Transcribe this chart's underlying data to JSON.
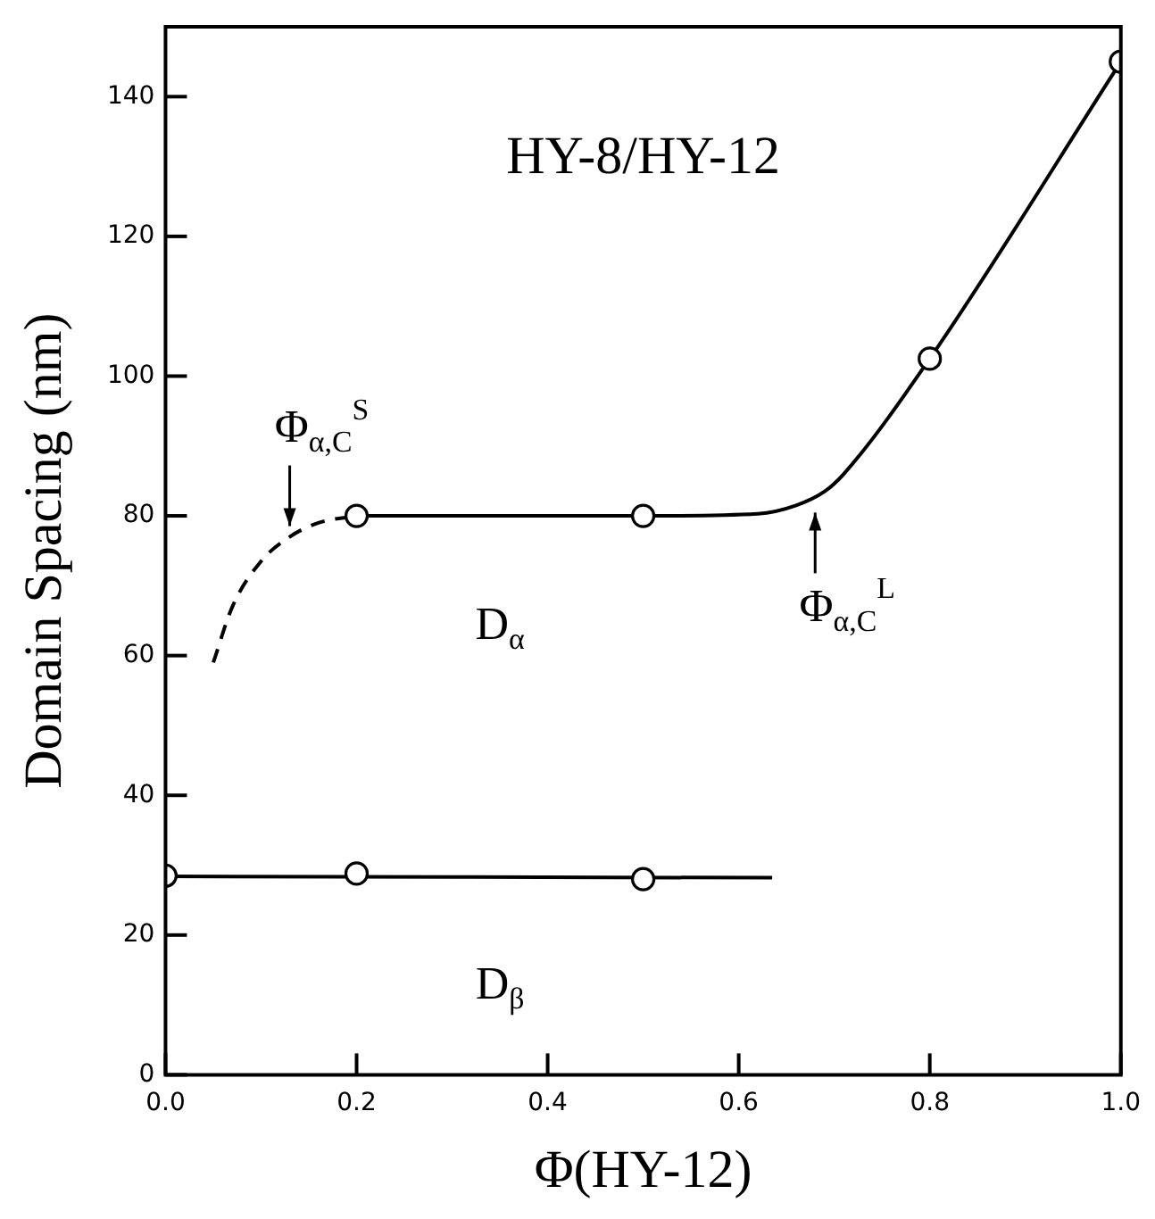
{
  "chart_data": {
    "type": "line",
    "title": "HY-8/HY-12",
    "xlabel": "Φ(HY-12)",
    "ylabel": "Domain Spacing (nm)",
    "xlim": [
      0,
      1
    ],
    "xticks": [
      {
        "value": 0,
        "label": "0.0"
      },
      {
        "value": 0.2,
        "label": "0.2"
      },
      {
        "value": 0.4,
        "label": "0.4"
      },
      {
        "value": 0.6,
        "label": "0.6"
      },
      {
        "value": 0.8,
        "label": "0.8"
      },
      {
        "value": 1,
        "label": "1.0"
      }
    ],
    "ylim": [
      0,
      150
    ],
    "yticks": [
      0,
      20,
      40,
      60,
      80,
      100,
      120,
      140
    ],
    "grid": false,
    "legend": false,
    "series": [
      {
        "type": "scatter",
        "name": "D$_{α}$",
        "marker": "circle",
        "color": "#000000",
        "x": [
          0.2,
          0.5,
          0.8,
          1.0
        ],
        "values": [
          80,
          80,
          102.5,
          145
        ]
      },
      {
        "type": "scatter",
        "name": "D$_{β}$",
        "marker": "circle",
        "color": "#000000",
        "x": [
          0.0,
          0.2,
          0.5
        ],
        "values": [
          28.5,
          28.8,
          28
        ]
      },
      {
        "marker": "none",
        "line_style": "solid",
        "color": "#000000",
        "x": [
          0.2,
          0.5,
          0.62,
          0.66,
          0.69,
          0.71,
          0.8,
          1.0
        ],
        "values": [
          80,
          80,
          80.3,
          81.5,
          83.5,
          86,
          102.5,
          145
        ]
      },
      {
        "marker": "none",
        "line_style": "dashed",
        "color": "#000000",
        "x": [
          0.05,
          0.07,
          0.1,
          0.13,
          0.16,
          0.2
        ],
        "values": [
          59,
          67,
          73.5,
          77,
          79,
          80
        ]
      },
      {
        "marker": "none",
        "line_style": "solid",
        "color": "#000000",
        "x": [
          0.0,
          0.635
        ],
        "values": [
          28.4,
          28.2
        ]
      }
    ],
    "annotations": [
      {
        "text": "Φ$_{α,C}$$^{S}$",
        "x": 0.13,
        "y": 77
      },
      {
        "text": "Φ$_{α,C}$$^{L}$",
        "x": 0.68,
        "y": 82
      }
    ]
  }
}
